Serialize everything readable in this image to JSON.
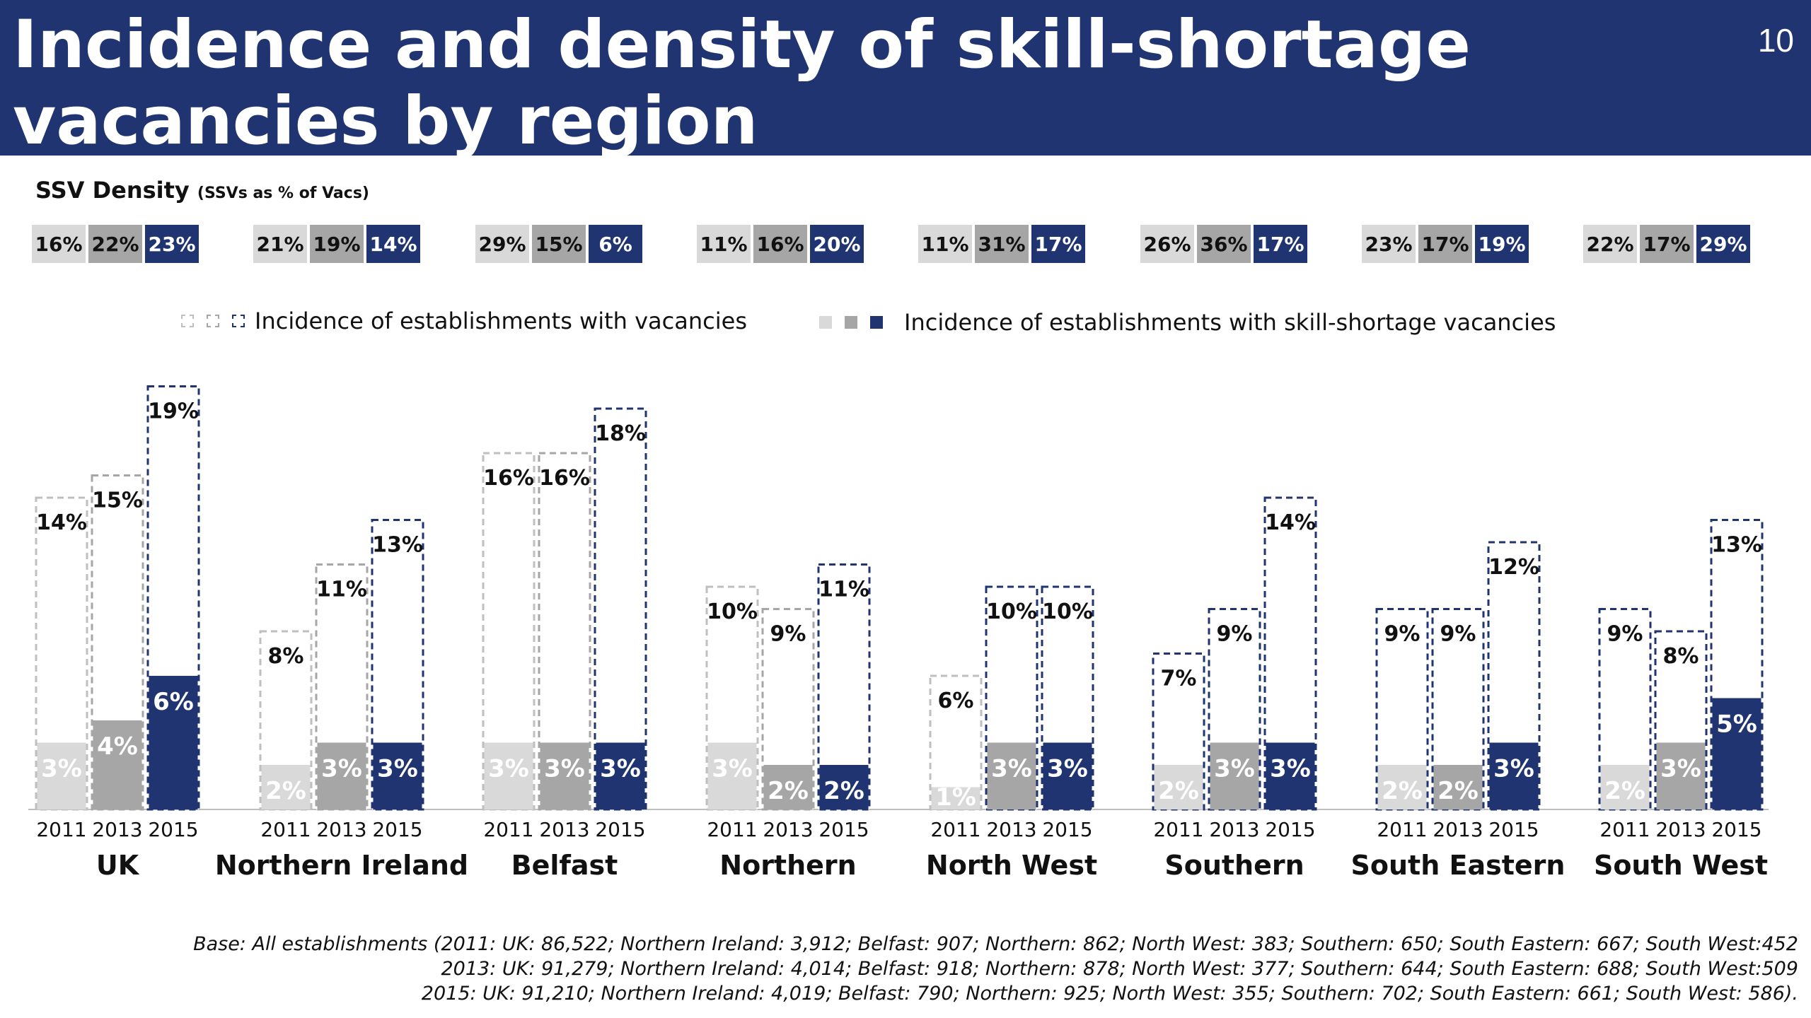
{
  "title": "Incidence and density of skill-shortage vacancies by region",
  "page_number": "10",
  "density": {
    "label": "SSV Density",
    "label_small": "(SSVs as % of Vacs)",
    "groups": [
      [
        "16%",
        "22%",
        "23%"
      ],
      [
        "21%",
        "19%",
        "14%"
      ],
      [
        "29%",
        "15%",
        "6%"
      ],
      [
        "11%",
        "16%",
        "20%"
      ],
      [
        "11%",
        "31%",
        "17%"
      ],
      [
        "26%",
        "36%",
        "17%"
      ],
      [
        "23%",
        "17%",
        "19%"
      ],
      [
        "22%",
        "17%",
        "29%"
      ]
    ]
  },
  "legend": {
    "vacancies": "Incidence of establishments with vacancies",
    "ssv": "Incidence of establishments with skill-shortage vacancies"
  },
  "colors": {
    "title_bg": "#1f3471",
    "y2011": "#d9d9d9",
    "y2013": "#a6a6a6",
    "y2015": "#1f3471",
    "outline_2011": "#bfbfbf",
    "outline_2013": "#a6a6a6",
    "outline_2015": "#1f3471"
  },
  "chart_data": {
    "type": "bar",
    "years": [
      "2011",
      "2013",
      "2015"
    ],
    "categories": [
      "UK",
      "Northern Ireland",
      "Belfast",
      "Northern",
      "North West",
      "Southern",
      "South Eastern",
      "South West"
    ],
    "series": [
      {
        "name": "Incidence of establishments with vacancies",
        "values": [
          [
            14,
            15,
            19
          ],
          [
            8,
            11,
            13
          ],
          [
            16,
            16,
            18
          ],
          [
            10,
            9,
            11
          ],
          [
            6,
            10,
            10
          ],
          [
            7,
            9,
            14
          ],
          [
            9,
            9,
            12
          ],
          [
            9,
            8,
            13
          ]
        ]
      },
      {
        "name": "Incidence of establishments with skill-shortage vacancies",
        "values": [
          [
            3,
            4,
            6
          ],
          [
            2,
            3,
            3
          ],
          [
            3,
            3,
            3
          ],
          [
            3,
            2,
            2
          ],
          [
            1,
            3,
            3
          ],
          [
            2,
            3,
            3
          ],
          [
            2,
            2,
            3
          ],
          [
            2,
            3,
            5
          ]
        ]
      }
    ],
    "dashed_outline_2015_style": [
      [
        false,
        false,
        true
      ],
      [
        false,
        false,
        true
      ],
      [
        false,
        false,
        true
      ],
      [
        false,
        false,
        true
      ],
      [
        false,
        true,
        true
      ],
      [
        true,
        true,
        true
      ],
      [
        true,
        true,
        true
      ],
      [
        true,
        true,
        true
      ]
    ]
  },
  "footnote": {
    "line1": "Base: All establishments (2011: UK: 86,522; Northern Ireland: 3,912; Belfast: 907; Northern: 862; North West: 383; Southern: 650; South Eastern: 667; South West:452",
    "line2": "2013: UK: 91,279; Northern Ireland: 4,014; Belfast: 918; Northern: 878; North West: 377; Southern: 644; South Eastern: 688; South West:509",
    "line3": "2015: UK: 91,210;  Northern Ireland: 4,019; Belfast: 790; Northern: 925; North West: 355; Southern: 702; South Eastern: 661; South West: 586)."
  }
}
